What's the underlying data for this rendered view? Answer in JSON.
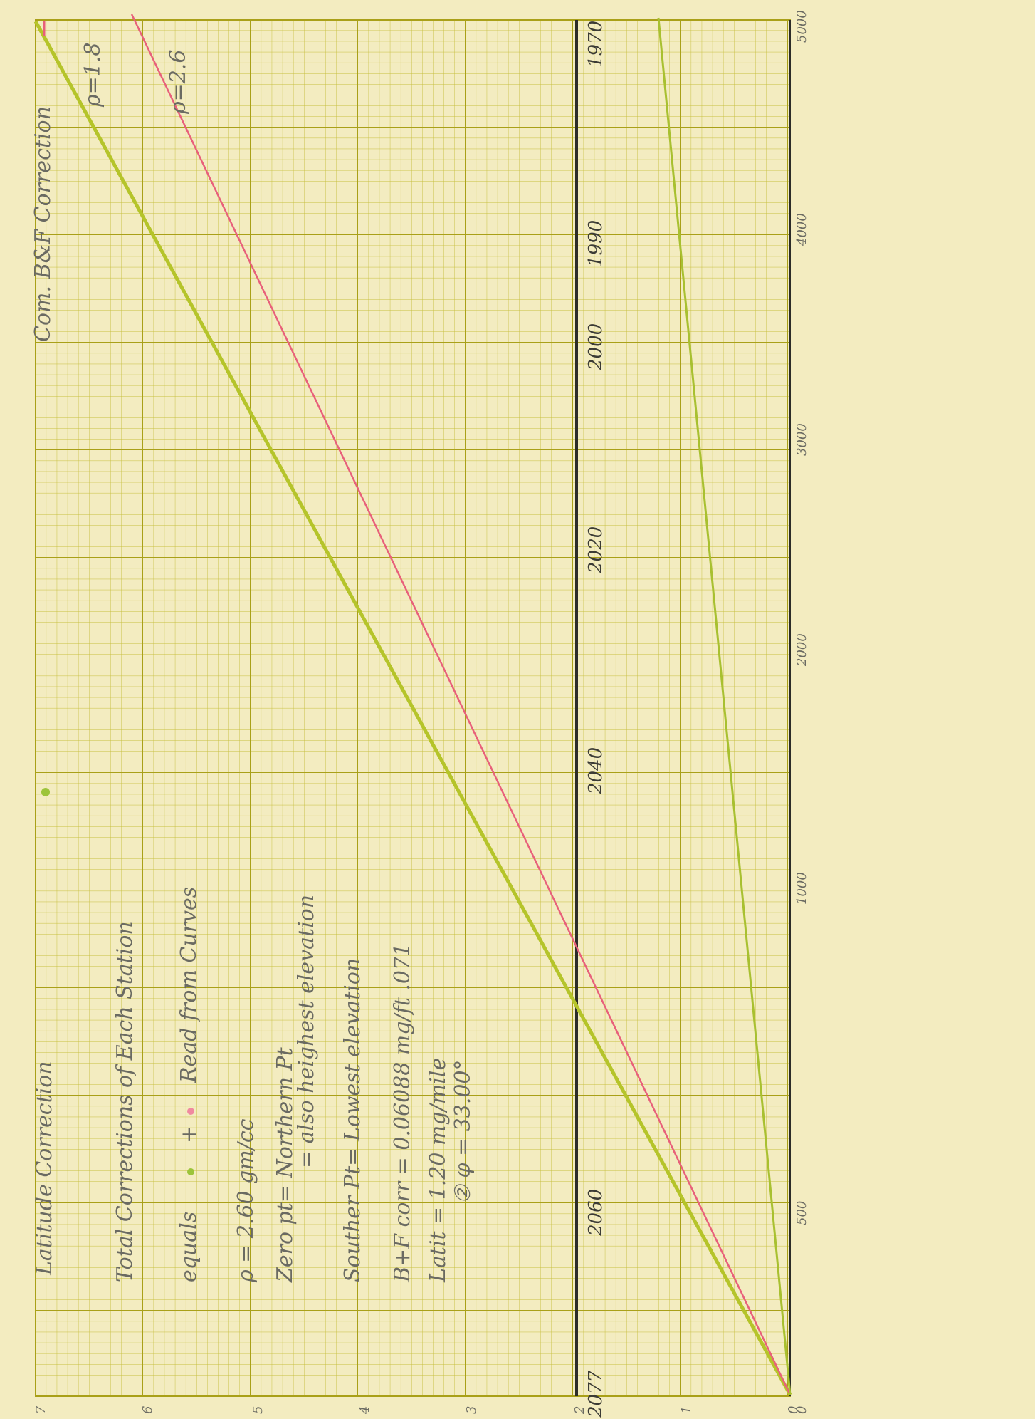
{
  "page": {
    "side_notes": {
      "latitude": "Latitude Correction",
      "bf": "Com. B&F Correction"
    },
    "notes": {
      "title": "Total Corrections of Each Station",
      "equals": "equals",
      "plus": "+",
      "read": "Read from Curves",
      "density": "ρ = 2.60 gm/cc",
      "zero": "Zero pt= Northern Pt",
      "zero_also": "= also heighest elevation",
      "south": "Souther Pt= Lowest elevation",
      "bf_corr": "B+F corr = 0.06088 mg/ft .071",
      "latit": "Latit = 1.20 mg/mile",
      "phi": "② φ = 33.00°"
    },
    "curve_labels": [
      "ρ=1.8",
      "ρ=2.6"
    ],
    "bottom_scale": [
      "7",
      "6",
      "5",
      "4",
      "3",
      "2",
      "1",
      "0"
    ],
    "middle_scale": [
      "1970",
      "1990",
      "2000",
      "2020",
      "2040",
      "2060",
      "2077"
    ],
    "right_scale": [
      "5000",
      "4000",
      "3000",
      "2000",
      "1000",
      "500",
      "0"
    ]
  }
}
